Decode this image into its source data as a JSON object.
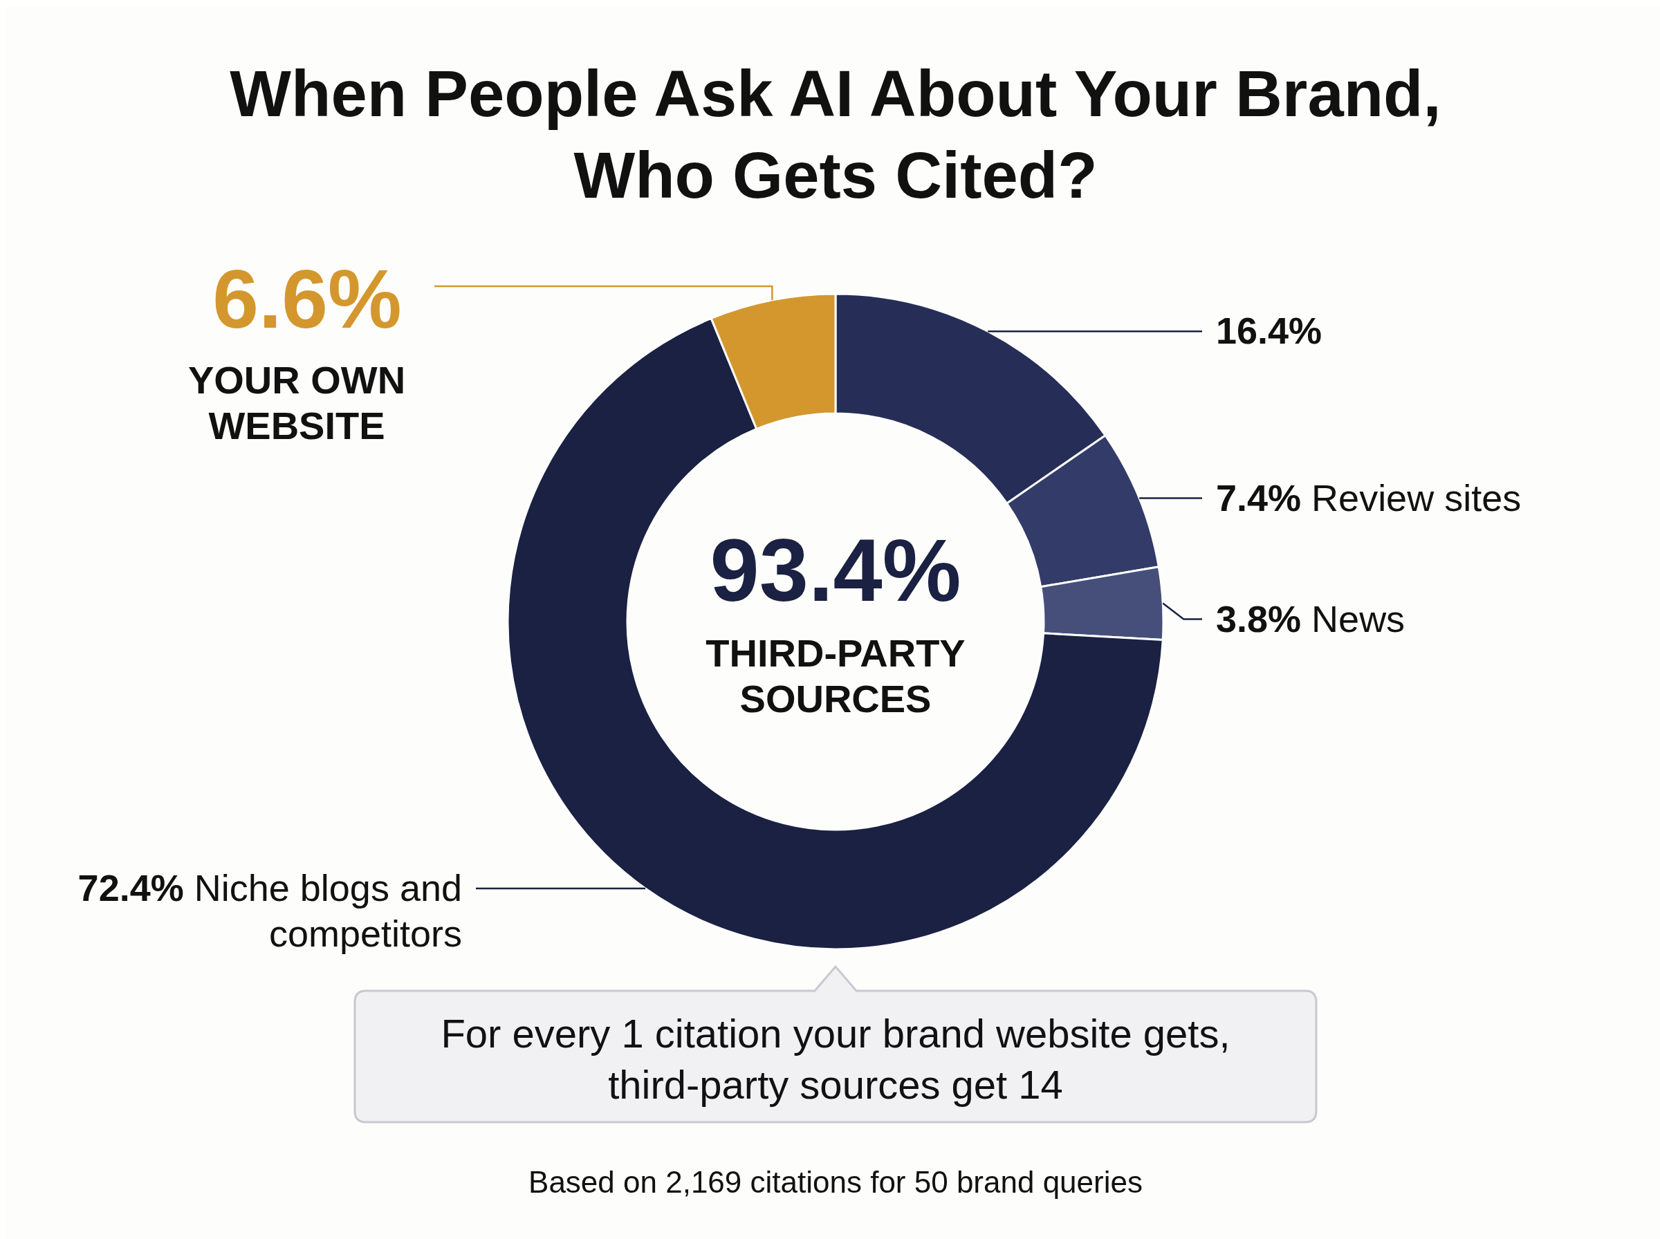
{
  "chart_data": {
    "type": "donut",
    "title": "When People Ask AI About Your Brand, Who Gets Cited?",
    "categories": [
      null,
      "Review sites",
      "News",
      "Niche blogs and competitors",
      "YOUR OWN WEBSITE"
    ],
    "values": [
      16.4,
      7.4,
      3.8,
      72.4,
      6.6
    ],
    "value_labels": [
      "16.4%",
      "7.4%",
      "3.8%",
      "72.4%",
      "6.6%"
    ],
    "colors": [
      "#262e58",
      "#333c68",
      "#454f7a",
      "#1a2142",
      "#d4972e"
    ],
    "annotations": [
      "93.4%",
      "THIRD-PARTY SOURCES",
      "For every 1 citation your brand website gets, third-party sources get 14",
      "Based on 2,169 citations for 50 brand queries"
    ],
    "legend": false
  }
}
